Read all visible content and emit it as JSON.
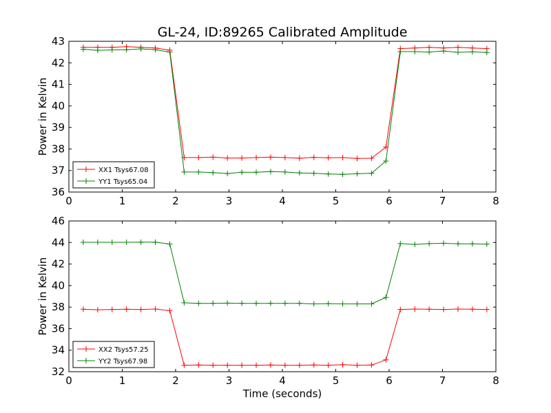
{
  "chart_data": {
    "title": "GL-24, ID:89265 Calibrated Amplitude",
    "xlabel": "Time (seconds)",
    "panels": [
      {
        "type": "line",
        "ylabel": "Power in Kelvin",
        "xlim": [
          0,
          8
        ],
        "ylim": [
          36,
          43
        ],
        "xticks": [
          0,
          1,
          2,
          3,
          4,
          5,
          6,
          7,
          8
        ],
        "yticks": [
          36,
          37,
          38,
          39,
          40,
          41,
          42,
          43
        ],
        "legend_position": "lower-left",
        "grid": false,
        "x": [
          0.27,
          0.54,
          0.81,
          1.08,
          1.35,
          1.62,
          1.89,
          2.16,
          2.43,
          2.7,
          2.97,
          3.24,
          3.51,
          3.78,
          4.05,
          4.32,
          4.59,
          4.86,
          5.13,
          5.4,
          5.67,
          5.94,
          6.21,
          6.48,
          6.75,
          7.02,
          7.29,
          7.56,
          7.83
        ],
        "series": [
          {
            "name": "XX1 Tsys67.08",
            "color": "#ff0000",
            "values": [
              42.72,
              42.72,
              42.72,
              42.75,
              42.72,
              42.69,
              42.59,
              37.6,
              37.6,
              37.62,
              37.58,
              37.58,
              37.6,
              37.62,
              37.6,
              37.57,
              37.61,
              37.59,
              37.6,
              37.56,
              37.57,
              38.09,
              42.66,
              42.69,
              42.72,
              42.69,
              42.72,
              42.69,
              42.66
            ]
          },
          {
            "name": "YY1 Tsys65.04",
            "color": "#008000",
            "values": [
              42.63,
              42.58,
              42.6,
              42.61,
              42.65,
              42.61,
              42.5,
              36.93,
              36.93,
              36.9,
              36.86,
              36.92,
              36.92,
              36.95,
              36.93,
              36.89,
              36.87,
              36.84,
              36.82,
              36.85,
              36.87,
              37.44,
              42.52,
              42.52,
              42.5,
              42.55,
              42.49,
              42.51,
              42.48
            ]
          }
        ]
      },
      {
        "type": "line",
        "ylabel": "Power in Kelvin",
        "xlim": [
          0,
          8
        ],
        "ylim": [
          32,
          46
        ],
        "xticks": [
          0,
          1,
          2,
          3,
          4,
          5,
          6,
          7,
          8
        ],
        "yticks": [
          32,
          34,
          36,
          38,
          40,
          42,
          44,
          46
        ],
        "legend_position": "lower-left",
        "grid": false,
        "x": [
          0.27,
          0.54,
          0.81,
          1.08,
          1.35,
          1.62,
          1.89,
          2.16,
          2.43,
          2.7,
          2.97,
          3.24,
          3.51,
          3.78,
          4.05,
          4.32,
          4.59,
          4.86,
          5.13,
          5.4,
          5.67,
          5.94,
          6.21,
          6.48,
          6.75,
          7.02,
          7.29,
          7.56,
          7.83
        ],
        "series": [
          {
            "name": "XX2 Tsys57.25",
            "color": "#ff0000",
            "values": [
              37.8,
              37.75,
              37.78,
              37.8,
              37.78,
              37.82,
              37.67,
              32.6,
              32.62,
              32.6,
              32.6,
              32.6,
              32.6,
              32.62,
              32.6,
              32.6,
              32.62,
              32.6,
              32.65,
              32.6,
              32.62,
              33.1,
              37.78,
              37.82,
              37.8,
              37.78,
              37.82,
              37.8,
              37.78
            ]
          },
          {
            "name": "YY2 Tsys67.98",
            "color": "#008000",
            "values": [
              44.02,
              44.02,
              44.02,
              44.02,
              44.03,
              44.03,
              43.85,
              38.4,
              38.35,
              38.35,
              38.37,
              38.35,
              38.35,
              38.35,
              38.35,
              38.35,
              38.3,
              38.32,
              38.3,
              38.3,
              38.3,
              38.9,
              43.9,
              43.82,
              43.9,
              43.93,
              43.88,
              43.88,
              43.85
            ]
          }
        ]
      }
    ]
  }
}
